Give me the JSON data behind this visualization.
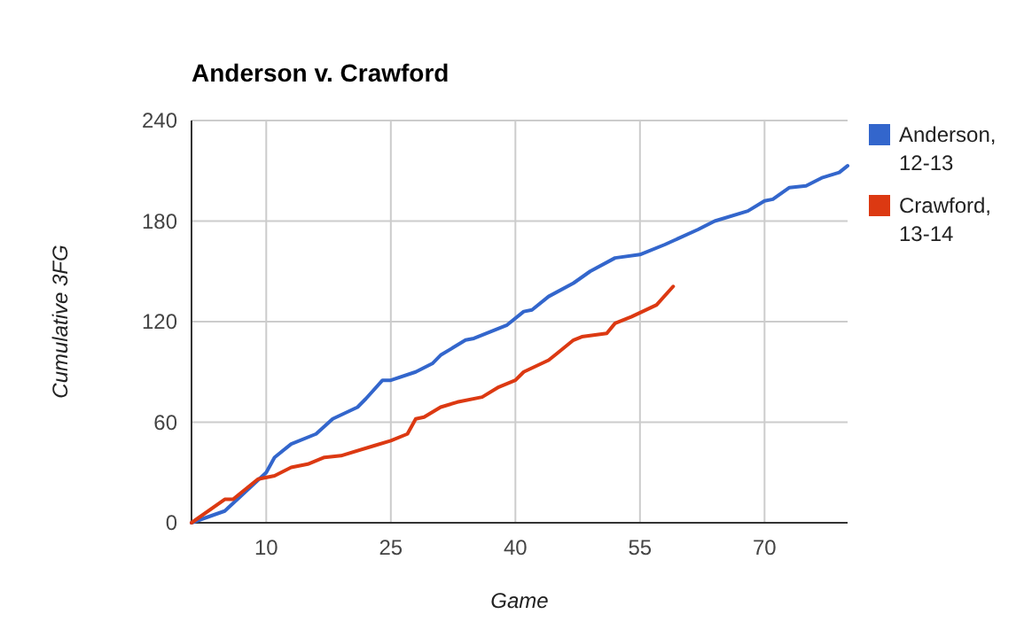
{
  "chart_data": {
    "type": "line",
    "title": "Anderson v. Crawford",
    "xlabel": "Game",
    "ylabel": "Cumulative 3FG",
    "xlim": [
      1,
      80
    ],
    "xticks": [
      10,
      25,
      40,
      55,
      70
    ],
    "ylim": [
      0,
      240
    ],
    "yticks": [
      0,
      60,
      120,
      180,
      240
    ],
    "grid": true,
    "legend": "right",
    "marker": "none",
    "series": [
      {
        "name": "Anderson, 12-13",
        "color": "#3366cc",
        "x": [
          1,
          5,
          10,
          11,
          13,
          16,
          18,
          21,
          22,
          24,
          25,
          28,
          30,
          31,
          34,
          35,
          36,
          39,
          41,
          42,
          44,
          47,
          49,
          52,
          55,
          58,
          62,
          64,
          68,
          70,
          71,
          73,
          75,
          77,
          79,
          80
        ],
        "values": [
          0,
          7,
          30,
          39,
          47,
          53,
          62,
          69,
          74,
          85,
          85,
          90,
          95,
          100,
          109,
          110,
          112,
          118,
          126,
          127,
          135,
          143,
          150,
          158,
          160,
          166,
          175,
          180,
          186,
          192,
          193,
          200,
          201,
          206,
          209,
          213
        ]
      },
      {
        "name": "Crawford, 13-14",
        "color": "#dc3912",
        "x": [
          1,
          5,
          6,
          9,
          11,
          13,
          15,
          17,
          19,
          23,
          25,
          27,
          28,
          29,
          31,
          33,
          36,
          38,
          40,
          41,
          44,
          45,
          47,
          48,
          51,
          52,
          54,
          57,
          59
        ],
        "values": [
          0,
          14,
          14,
          26,
          28,
          33,
          35,
          39,
          40,
          46,
          49,
          53,
          62,
          63,
          69,
          72,
          75,
          81,
          85,
          90,
          97,
          101,
          109,
          111,
          113,
          119,
          123,
          130,
          141
        ]
      }
    ]
  }
}
